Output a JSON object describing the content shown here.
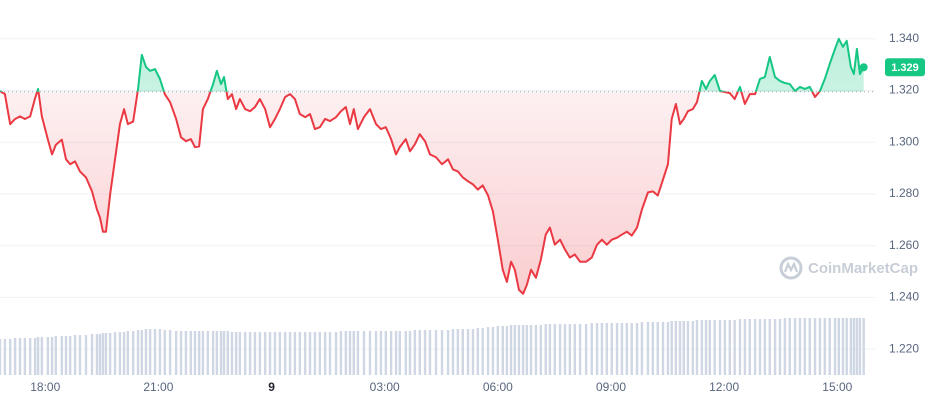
{
  "chart_data": {
    "type": "line",
    "x": [
      16.8,
      16.93,
      17.07,
      17.2,
      17.33,
      17.46,
      17.6,
      17.73,
      17.81,
      17.91,
      18.07,
      18.18,
      18.28,
      18.44,
      18.55,
      18.66,
      18.79,
      18.92,
      19.08,
      19.24,
      19.37,
      19.45,
      19.53,
      19.61,
      19.72,
      19.85,
      19.98,
      20.09,
      20.19,
      20.33,
      20.46,
      20.56,
      20.67,
      20.78,
      20.91,
      21.04,
      21.17,
      21.31,
      21.47,
      21.6,
      21.73,
      21.86,
      21.97,
      22.08,
      22.18,
      22.31,
      22.45,
      22.55,
      22.66,
      22.74,
      22.84,
      22.95,
      23.06,
      23.16,
      23.3,
      23.43,
      23.56,
      23.69,
      23.83,
      23.96,
      24.09,
      24.22,
      24.36,
      24.49,
      24.62,
      24.75,
      24.89,
      25.02,
      25.15,
      25.28,
      25.42,
      25.55,
      25.71,
      25.84,
      25.97,
      26.08,
      26.18,
      26.29,
      26.45,
      26.61,
      26.77,
      26.9,
      27.03,
      27.17,
      27.3,
      27.4,
      27.56,
      27.67,
      27.8,
      27.93,
      28.07,
      28.2,
      28.36,
      28.52,
      28.68,
      28.81,
      28.94,
      29.07,
      29.21,
      29.34,
      29.47,
      29.6,
      29.74,
      29.87,
      30.0,
      30.13,
      30.24,
      30.35,
      30.45,
      30.56,
      30.67,
      30.77,
      30.88,
      31.01,
      31.14,
      31.27,
      31.38,
      31.51,
      31.65,
      31.78,
      31.91,
      32.04,
      32.18,
      32.34,
      32.49,
      32.63,
      32.76,
      32.89,
      33.02,
      33.16,
      33.29,
      33.42,
      33.55,
      33.69,
      33.82,
      33.98,
      34.11,
      34.24,
      34.38,
      34.51,
      34.61,
      34.72,
      34.83,
      34.93,
      35.04,
      35.17,
      35.28,
      35.41,
      35.52,
      35.62,
      35.75,
      35.89,
      36.02,
      36.15,
      36.28,
      36.42,
      36.55,
      36.68,
      36.82,
      36.95,
      37.08,
      37.21,
      37.35,
      37.48,
      37.61,
      37.74,
      37.88,
      38.01,
      38.14,
      38.27,
      38.41,
      38.54,
      38.67,
      38.8,
      38.94,
      39.04,
      39.15,
      39.25,
      39.36,
      39.44,
      39.52,
      39.6,
      39.7
    ],
    "values": [
      1.3198,
      1.3186,
      1.307,
      1.309,
      1.31,
      1.309,
      1.31,
      1.317,
      1.3206,
      1.31,
      1.301,
      1.2953,
      1.299,
      1.301,
      1.2934,
      1.2915,
      1.2926,
      1.2887,
      1.2864,
      1.281,
      1.274,
      1.2709,
      1.2654,
      1.2654,
      1.2798,
      1.2934,
      1.307,
      1.3128,
      1.307,
      1.308,
      1.3206,
      1.3338,
      1.3291,
      1.3276,
      1.3283,
      1.3245,
      1.3186,
      1.3155,
      1.309,
      1.3019,
      1.3004,
      1.3012,
      1.2981,
      1.2984,
      1.3128,
      1.3167,
      1.3225,
      1.3276,
      1.3225,
      1.3252,
      1.3167,
      1.3186,
      1.3128,
      1.3167,
      1.3128,
      1.312,
      1.3136,
      1.3167,
      1.3128,
      1.3058,
      1.309,
      1.3128,
      1.3175,
      1.3186,
      1.3167,
      1.3109,
      1.3097,
      1.3109,
      1.3051,
      1.3058,
      1.309,
      1.3082,
      1.3097,
      1.312,
      1.3136,
      1.307,
      1.3128,
      1.3051,
      1.3097,
      1.3128,
      1.307,
      1.3051,
      1.3058,
      1.3012,
      1.2953,
      1.2981,
      1.3012,
      1.2965,
      1.2992,
      1.3031,
      1.3004,
      1.2953,
      1.2942,
      1.2915,
      1.2934,
      1.2895,
      1.2887,
      1.2864,
      1.2849,
      1.2837,
      1.2817,
      1.2833,
      1.2794,
      1.2732,
      1.2623,
      1.2507,
      1.246,
      1.2538,
      1.2507,
      1.2429,
      1.2414,
      1.2449,
      1.2507,
      1.2476,
      1.2546,
      1.2643,
      1.267,
      1.2604,
      1.2623,
      1.2585,
      1.2554,
      1.2566,
      1.2538,
      1.2538,
      1.2554,
      1.2604,
      1.2623,
      1.2604,
      1.2623,
      1.2631,
      1.2643,
      1.2654,
      1.2639,
      1.267,
      1.274,
      1.2806,
      1.281,
      1.2794,
      1.2856,
      1.2915,
      1.309,
      1.3148,
      1.307,
      1.309,
      1.312,
      1.3128,
      1.3155,
      1.3237,
      1.3206,
      1.3237,
      1.326,
      1.3198,
      1.3194,
      1.319,
      1.3167,
      1.3214,
      1.3148,
      1.3186,
      1.3186,
      1.3245,
      1.3252,
      1.333,
      1.3252,
      1.3237,
      1.3229,
      1.3225,
      1.3198,
      1.3214,
      1.3206,
      1.3214,
      1.3175,
      1.3198,
      1.3245,
      1.3303,
      1.3361,
      1.34,
      1.3369,
      1.3392,
      1.3291,
      1.3264,
      1.3361,
      1.3264,
      1.329
    ],
    "volume": [
      36,
      36,
      36,
      37,
      37,
      37,
      37,
      37,
      38,
      38,
      38,
      38,
      39,
      39,
      39,
      39,
      40,
      40,
      40,
      41,
      41,
      41,
      42,
      42,
      42,
      43,
      43,
      43,
      44,
      44,
      45,
      45,
      46,
      46,
      46,
      46,
      45,
      45,
      44,
      44,
      44,
      44,
      44,
      44,
      44,
      44,
      44,
      44,
      44,
      44,
      44,
      43,
      43,
      43,
      43,
      43,
      43,
      43,
      43,
      43,
      43,
      43,
      43,
      43,
      43,
      43,
      43,
      43,
      43,
      43,
      43,
      43,
      43,
      44,
      44,
      44,
      44,
      44,
      44,
      44,
      44,
      44,
      44,
      44,
      44,
      44,
      44,
      44,
      45,
      45,
      45,
      45,
      45,
      45,
      45,
      46,
      46,
      46,
      46,
      46,
      47,
      47,
      48,
      48,
      49,
      49,
      49,
      50,
      50,
      50,
      50,
      50,
      50,
      50,
      50,
      51,
      51,
      51,
      51,
      51,
      51,
      51,
      51,
      51,
      52,
      52,
      52,
      52,
      52,
      52,
      52,
      52,
      52,
      52,
      53,
      53,
      53,
      53,
      53,
      53,
      54,
      54,
      54,
      54,
      54,
      54,
      55,
      55,
      55,
      55,
      55,
      55,
      55,
      55,
      55,
      56,
      56,
      56,
      56,
      56,
      56,
      56,
      56,
      56,
      57,
      57,
      57,
      57,
      57,
      57,
      57,
      57,
      57,
      57,
      57,
      57,
      57,
      57,
      57,
      57,
      57,
      57,
      57
    ],
    "volume_lim": [
      0,
      60
    ],
    "volume_color": "#cfd6e4",
    "baseline": 1.3195,
    "color_up": "#16c784",
    "color_down": "#ea3943",
    "current_price": 1.329,
    "xlim": [
      16.8,
      40.0
    ],
    "ylim": [
      1.21,
      1.355
    ],
    "xticks": [
      {
        "value": 18,
        "label": "18:00"
      },
      {
        "value": 21,
        "label": "21:00"
      },
      {
        "value": 24,
        "label": "9"
      },
      {
        "value": 27,
        "label": "03:00"
      },
      {
        "value": 30,
        "label": "06:00"
      },
      {
        "value": 33,
        "label": "09:00"
      },
      {
        "value": 36,
        "label": "12:00"
      },
      {
        "value": 39,
        "label": "15:00"
      }
    ],
    "yticks": [
      {
        "value": 1.22,
        "label": "1.220"
      },
      {
        "value": 1.24,
        "label": "1.240"
      },
      {
        "value": 1.26,
        "label": "1.260"
      },
      {
        "value": 1.28,
        "label": "1.280"
      },
      {
        "value": 1.3,
        "label": "1.300"
      },
      {
        "value": 1.32,
        "label": "1.320"
      },
      {
        "value": 1.34,
        "label": "1.340"
      }
    ],
    "grid": true,
    "watermark": "CoinMarketCap"
  }
}
